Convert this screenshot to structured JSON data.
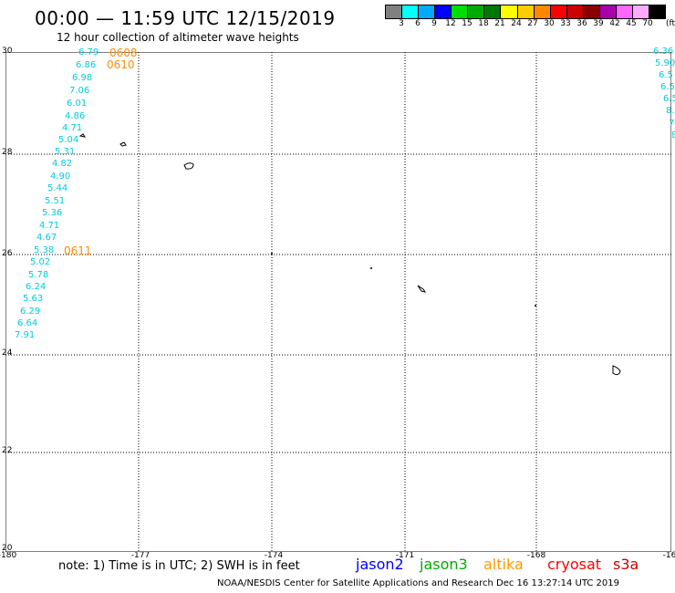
{
  "header": {
    "title": "00:00 — 11:59 UTC 12/15/2019",
    "subtitle": "12 hour collection of altimeter wave heights"
  },
  "legend": {
    "colors": [
      "#808080",
      "#00ffff",
      "#00aaff",
      "#0000ff",
      "#00dd00",
      "#00aa00",
      "#007700",
      "#ffff00",
      "#ffcc00",
      "#ff8800",
      "#ff0000",
      "#cc0000",
      "#880000",
      "#aa00aa",
      "#ff66ff",
      "#ffaaff",
      "#000000"
    ],
    "labels": [
      "3",
      "6",
      "9",
      "12",
      "15",
      "18",
      "21",
      "24",
      "27",
      "30",
      "33",
      "36",
      "39",
      "42",
      "45",
      "70"
    ],
    "unit": "(ft)"
  },
  "axes": {
    "lat_ticks": [
      "30",
      "28",
      "26",
      "24",
      "22",
      "20"
    ],
    "lon_ticks": [
      "-180",
      "-177",
      "-174",
      "-171",
      "-168",
      "-16"
    ]
  },
  "observations_left": [
    "6.79",
    "6.86",
    "6.98",
    "7.06",
    "6.01",
    "4.86",
    "4.71",
    "5.04",
    "5.31",
    "4.82",
    "4.90",
    "5.44",
    "5.51",
    "5.36",
    "4.71",
    "4.67",
    "5.38",
    "5.02",
    "5.78",
    "6.24",
    "5.63",
    "6.29",
    "6.64",
    "7.91"
  ],
  "observations_right": [
    "6.36",
    "5.90",
    "6.5",
    "6.5",
    "6.5",
    "8.",
    "7",
    "8"
  ],
  "pass_times": [
    "0608",
    "0610",
    "0611"
  ],
  "footer": {
    "note": "note: 1) Time is in UTC; 2) SWH is in feet",
    "satellites": [
      "jason2",
      "jason3",
      "altika",
      "cryosat",
      "s3a"
    ],
    "satellite_colors": [
      "#0000ff",
      "#00aa00",
      "#ff9900",
      "#ff0000",
      "#cc0000"
    ],
    "credit": "NOAA/NESDIS Center for Satellite Applications and Research    Dec 16 13:27:14 UTC 2019"
  }
}
